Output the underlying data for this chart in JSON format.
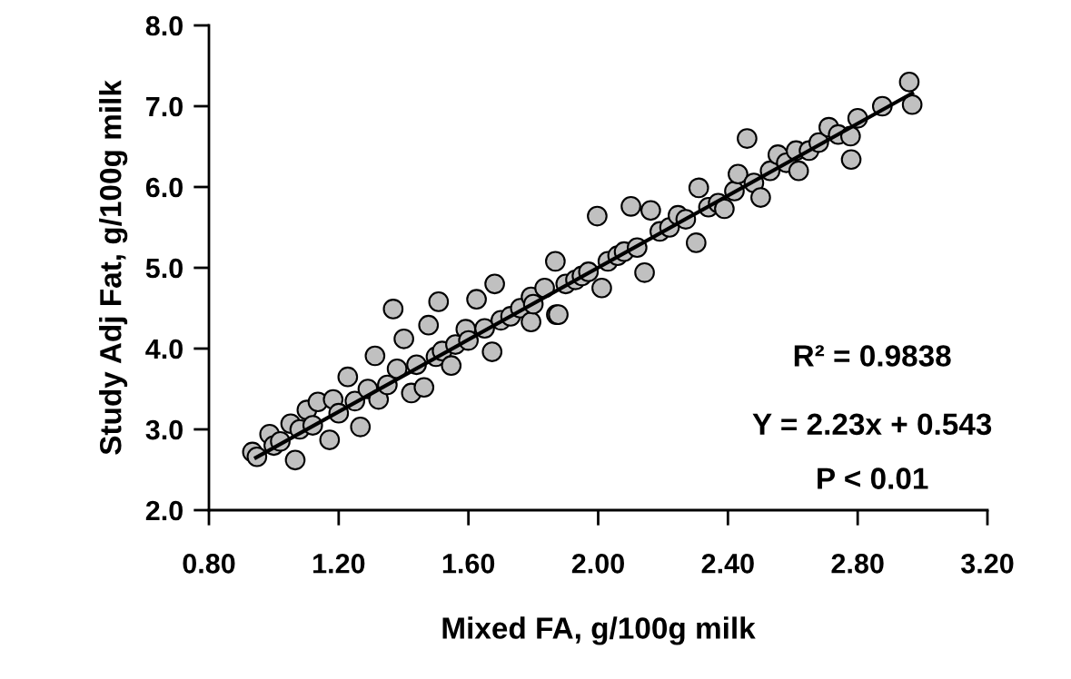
{
  "chart_data": {
    "type": "scatter",
    "xlabel": "Mixed FA, g/100g milk",
    "ylabel": "Study Adj Fat, g/100g milk",
    "xlim": [
      0.8,
      3.2
    ],
    "xticks": [
      {
        "value": 0.8,
        "label": "0.80"
      },
      {
        "value": 1.2,
        "label": "1.20"
      },
      {
        "value": 1.6,
        "label": "1.60"
      },
      {
        "value": 2.0,
        "label": "2.00"
      },
      {
        "value": 2.4,
        "label": "2.40"
      },
      {
        "value": 2.8,
        "label": "2.80"
      },
      {
        "value": 3.2,
        "label": "3.20"
      }
    ],
    "ylim": [
      2.0,
      8.0
    ],
    "yticks": [
      {
        "value": 2,
        "label": "2.0"
      },
      {
        "value": 3,
        "label": "3.0"
      },
      {
        "value": 4,
        "label": "4.0"
      },
      {
        "value": 5,
        "label": "5.0"
      },
      {
        "value": 6,
        "label": "6.0"
      },
      {
        "value": 7,
        "label": "7.0"
      },
      {
        "value": 8,
        "label": "8.0"
      }
    ],
    "grid": false,
    "legend": false,
    "marker": "circle",
    "annotations": [
      "R² = 0.9838",
      "Y = 2.23x + 0.543",
      "P < 0.01"
    ],
    "series": [
      {
        "color": "#c0c0c0",
        "x": [
          0.934,
          0.948,
          0.987,
          1.0,
          1.02,
          1.066,
          1.052,
          1.08,
          1.102,
          1.12,
          1.136,
          1.172,
          1.183,
          1.2,
          1.228,
          1.25,
          1.267,
          1.29,
          1.312,
          1.323,
          1.35,
          1.368,
          1.38,
          1.401,
          1.424,
          1.44,
          1.463,
          1.477,
          1.5,
          1.508,
          1.519,
          1.547,
          1.56,
          1.592,
          1.6,
          1.625,
          1.65,
          1.673,
          1.681,
          1.7,
          1.73,
          1.76,
          1.793,
          1.793,
          1.8,
          1.835,
          1.868,
          1.871,
          1.877,
          1.9,
          1.93,
          1.95,
          1.97,
          1.997,
          2.011,
          2.03,
          2.06,
          2.08,
          2.101,
          2.12,
          2.143,
          2.162,
          2.19,
          2.22,
          2.246,
          2.27,
          2.302,
          2.31,
          2.34,
          2.37,
          2.389,
          2.42,
          2.431,
          2.459,
          2.48,
          2.501,
          2.53,
          2.554,
          2.58,
          2.61,
          2.618,
          2.65,
          2.68,
          2.711,
          2.74,
          2.778,
          2.78,
          2.8,
          2.876,
          2.959,
          2.968
        ],
        "values": [
          2.72,
          2.66,
          2.94,
          2.8,
          2.85,
          2.62,
          3.07,
          3.0,
          3.24,
          3.05,
          3.34,
          2.87,
          3.37,
          3.2,
          3.65,
          3.35,
          3.03,
          3.5,
          3.91,
          3.37,
          3.55,
          4.49,
          3.75,
          4.12,
          3.45,
          3.8,
          3.52,
          4.29,
          3.9,
          4.58,
          3.97,
          3.79,
          4.05,
          4.24,
          4.1,
          4.61,
          4.25,
          3.96,
          4.8,
          4.35,
          4.4,
          4.5,
          4.33,
          4.64,
          4.55,
          4.75,
          5.08,
          4.42,
          4.42,
          4.8,
          4.85,
          4.9,
          4.95,
          5.64,
          4.75,
          5.08,
          5.15,
          5.2,
          5.76,
          5.25,
          4.94,
          5.71,
          5.45,
          5.5,
          5.65,
          5.6,
          5.31,
          5.99,
          5.75,
          5.8,
          5.73,
          5.95,
          6.16,
          6.6,
          6.05,
          5.87,
          6.2,
          6.4,
          6.3,
          6.45,
          6.2,
          6.45,
          6.55,
          6.74,
          6.65,
          6.63,
          6.34,
          6.85,
          7.0,
          7.3,
          7.02
        ]
      },
      {
        "type": "line",
        "color": "#000000",
        "x": [
          0.945,
          2.968
        ],
        "values": [
          2.65,
          7.16
        ],
        "marker": "none"
      }
    ]
  }
}
